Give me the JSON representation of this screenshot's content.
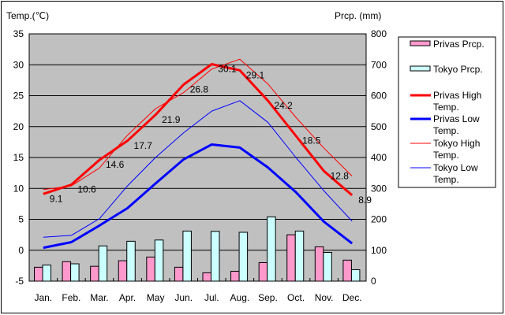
{
  "chart_data": {
    "type": "bar+line",
    "left_axis_title": "Temp.(℃)",
    "right_axis_title": "Prcp. (mm)",
    "left_ylim": [
      -5,
      35
    ],
    "left_ticks": [
      35,
      30,
      25,
      20,
      15,
      10,
      5,
      0,
      -5
    ],
    "right_ylim": [
      0,
      800
    ],
    "right_ticks": [
      800,
      700,
      600,
      500,
      400,
      300,
      200,
      100,
      0
    ],
    "grid": true,
    "legend_position": "right",
    "categories": [
      "Jan.",
      "Feb.",
      "Mar.",
      "Apr.",
      "May",
      "Jun.",
      "Jul.",
      "Aug.",
      "Sep.",
      "Oct.",
      "Nov.",
      "Dec."
    ],
    "bar_series": [
      {
        "name": "Privas Prcp.",
        "color": "#ff99cc",
        "values": [
          45,
          63,
          48,
          66,
          78,
          45,
          27,
          32,
          60,
          150,
          111,
          68
        ]
      },
      {
        "name": "Tokyo Prcp.",
        "color": "#ccffff",
        "values": [
          52,
          56,
          114,
          129,
          133,
          162,
          161,
          158,
          208,
          162,
          93,
          37
        ]
      }
    ],
    "line_series": [
      {
        "name": "Privas High Temp.",
        "color": "#ff0000",
        "width": "thick",
        "values": [
          9.1,
          10.6,
          14.6,
          17.7,
          21.9,
          26.8,
          30.1,
          29.1,
          24.2,
          18.5,
          12.8,
          8.9
        ],
        "labels": [
          "9.1",
          "10.6",
          "14.6",
          "17.7",
          "21.9",
          "26.8",
          "30.1",
          "29.1",
          "24.2",
          "18.5",
          "12.8",
          "8.9"
        ]
      },
      {
        "name": "Privas Low Temp.",
        "color": "#0000ff",
        "width": "thick",
        "values": [
          0.4,
          1.3,
          4.0,
          6.8,
          10.8,
          14.7,
          17.1,
          16.6,
          13.4,
          9.4,
          4.6,
          1.1
        ]
      },
      {
        "name": "Tokyo High Temp.",
        "color": "#ff0000",
        "width": "thin",
        "values": [
          9.8,
          10.4,
          13.3,
          18.6,
          22.9,
          25.5,
          29.3,
          30.9,
          26.9,
          21.5,
          16.5,
          12.0
        ]
      },
      {
        "name": "Tokyo Low Temp.",
        "color": "#0000ff",
        "width": "thin",
        "values": [
          2.1,
          2.4,
          5.1,
          10.4,
          15.0,
          19.0,
          22.5,
          24.2,
          20.7,
          15.0,
          9.6,
          4.7
        ]
      }
    ],
    "legend": [
      {
        "line1": "Privas Prcp.",
        "line2": ""
      },
      {
        "line1": "Tokyo Prcp.",
        "line2": ""
      },
      {
        "line1": "Privas High",
        "line2": "Temp."
      },
      {
        "line1": "Privas Low",
        "line2": "Temp."
      },
      {
        "line1": "Tokyo High",
        "line2": "Temp."
      },
      {
        "line1": "Tokyo Low",
        "line2": "Temp."
      }
    ]
  }
}
